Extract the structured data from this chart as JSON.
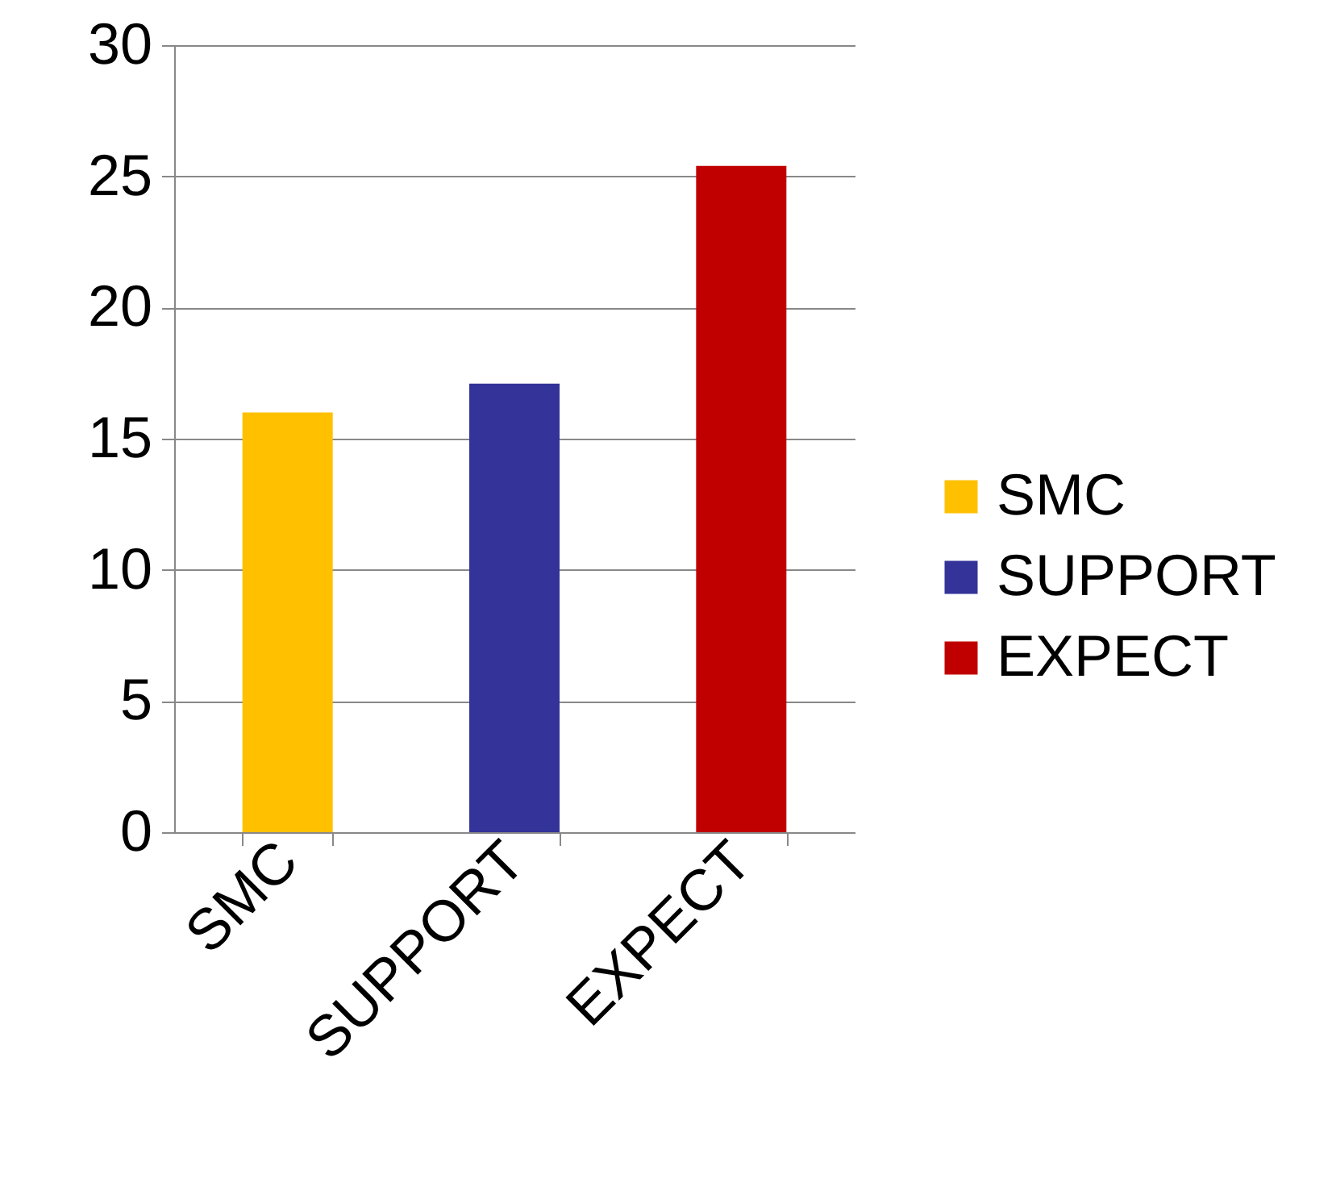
{
  "chart_data": {
    "type": "bar",
    "categories": [
      "SMC",
      "SUPPORT",
      "EXPECT"
    ],
    "series": [
      {
        "name": "SMC",
        "color": "#ffc000",
        "values": [
          16,
          null,
          null
        ]
      },
      {
        "name": "SUPPORT",
        "color": "#333399",
        "values": [
          null,
          17.1,
          null
        ]
      },
      {
        "name": "EXPECT",
        "color": "#c00000",
        "values": [
          null,
          null,
          25.4
        ]
      }
    ],
    "ylim": [
      0,
      30
    ],
    "yticks": [
      0,
      5,
      10,
      15,
      20,
      25,
      30
    ],
    "grid": "y",
    "legend": "right"
  }
}
